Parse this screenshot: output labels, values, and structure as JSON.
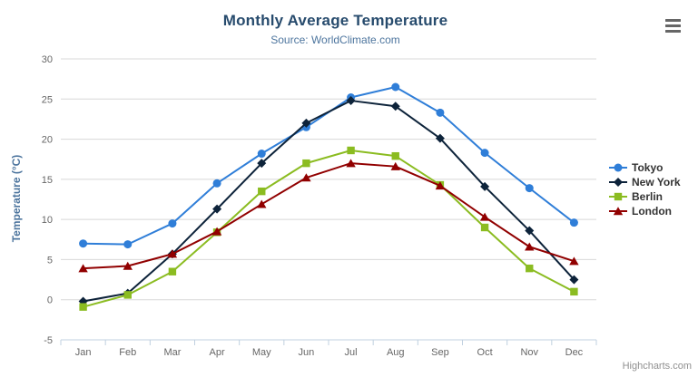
{
  "chart_data": {
    "type": "line",
    "title": "Monthly Average Temperature",
    "subtitle": "Source: WorldClimate.com",
    "xlabel": "",
    "ylabel": "Temperature (°C)",
    "ylim": [
      -5,
      30
    ],
    "y_ticks": [
      -5,
      0,
      5,
      10,
      15,
      20,
      25,
      30
    ],
    "grid": true,
    "legend_position": "right",
    "categories": [
      "Jan",
      "Feb",
      "Mar",
      "Apr",
      "May",
      "Jun",
      "Jul",
      "Aug",
      "Sep",
      "Oct",
      "Nov",
      "Dec"
    ],
    "series": [
      {
        "name": "Tokyo",
        "color": "#2f7ed8",
        "marker": "circle",
        "values": [
          7.0,
          6.9,
          9.5,
          14.5,
          18.2,
          21.5,
          25.2,
          26.5,
          23.3,
          18.3,
          13.9,
          9.6
        ]
      },
      {
        "name": "New York",
        "color": "#0d233a",
        "marker": "diamond",
        "values": [
          -0.2,
          0.8,
          5.7,
          11.3,
          17.0,
          22.0,
          24.8,
          24.1,
          20.1,
          14.1,
          8.6,
          2.5
        ]
      },
      {
        "name": "Berlin",
        "color": "#8bbc21",
        "marker": "square",
        "values": [
          -0.9,
          0.6,
          3.5,
          8.4,
          13.5,
          17.0,
          18.6,
          17.9,
          14.3,
          9.0,
          3.9,
          1.0
        ]
      },
      {
        "name": "London",
        "color": "#910000",
        "marker": "triangle",
        "values": [
          3.9,
          4.2,
          5.7,
          8.5,
          11.9,
          15.2,
          17.0,
          16.6,
          14.2,
          10.3,
          6.6,
          4.8
        ]
      }
    ],
    "axis_colors": {
      "grid": "#d8d8d8",
      "axis_line": "#c0d0e0",
      "tick_label": "#666666"
    }
  },
  "export_menu": {
    "icon": "hamburger-menu-icon"
  },
  "credits": {
    "text": "Highcharts.com"
  }
}
